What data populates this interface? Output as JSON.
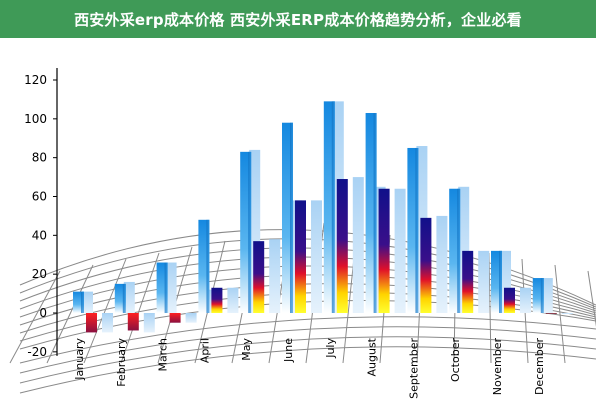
{
  "banner": {
    "title": "西安外采erp成本价格 西安外采ERP成本价格趋势分析，企业必看",
    "background": "#3f9a57"
  },
  "chart_data": {
    "type": "bar",
    "title": "",
    "xlabel": "",
    "ylabel": "",
    "ylim": [
      -20,
      120
    ],
    "y_ticks": [
      -20,
      0,
      20,
      40,
      60,
      80,
      100,
      120
    ],
    "categories": [
      "January",
      "February",
      "March",
      "April",
      "May",
      "June",
      "July",
      "August",
      "September",
      "October",
      "November",
      "December"
    ],
    "series": [
      {
        "values": [
          11,
          15,
          26,
          48,
          83,
          98,
          109,
          103,
          85,
          64,
          32,
          18
        ],
        "color": "#1a8fe0"
      },
      {
        "values": [
          -10,
          -9,
          -5,
          13,
          37,
          58,
          69,
          64,
          49,
          32,
          13,
          0
        ],
        "color": "#1a1a8c"
      }
    ],
    "background_series": [
      {
        "values": [
          11,
          16,
          26,
          12,
          84,
          58,
          109,
          65,
          86,
          65,
          32,
          18
        ],
        "color": "#b9dcf7"
      },
      {
        "values": [
          -10,
          -10,
          -5,
          13,
          38,
          58,
          70,
          64,
          50,
          32,
          13,
          0
        ],
        "color": "#b9dcf7"
      }
    ],
    "grid": true,
    "legend": "none"
  }
}
